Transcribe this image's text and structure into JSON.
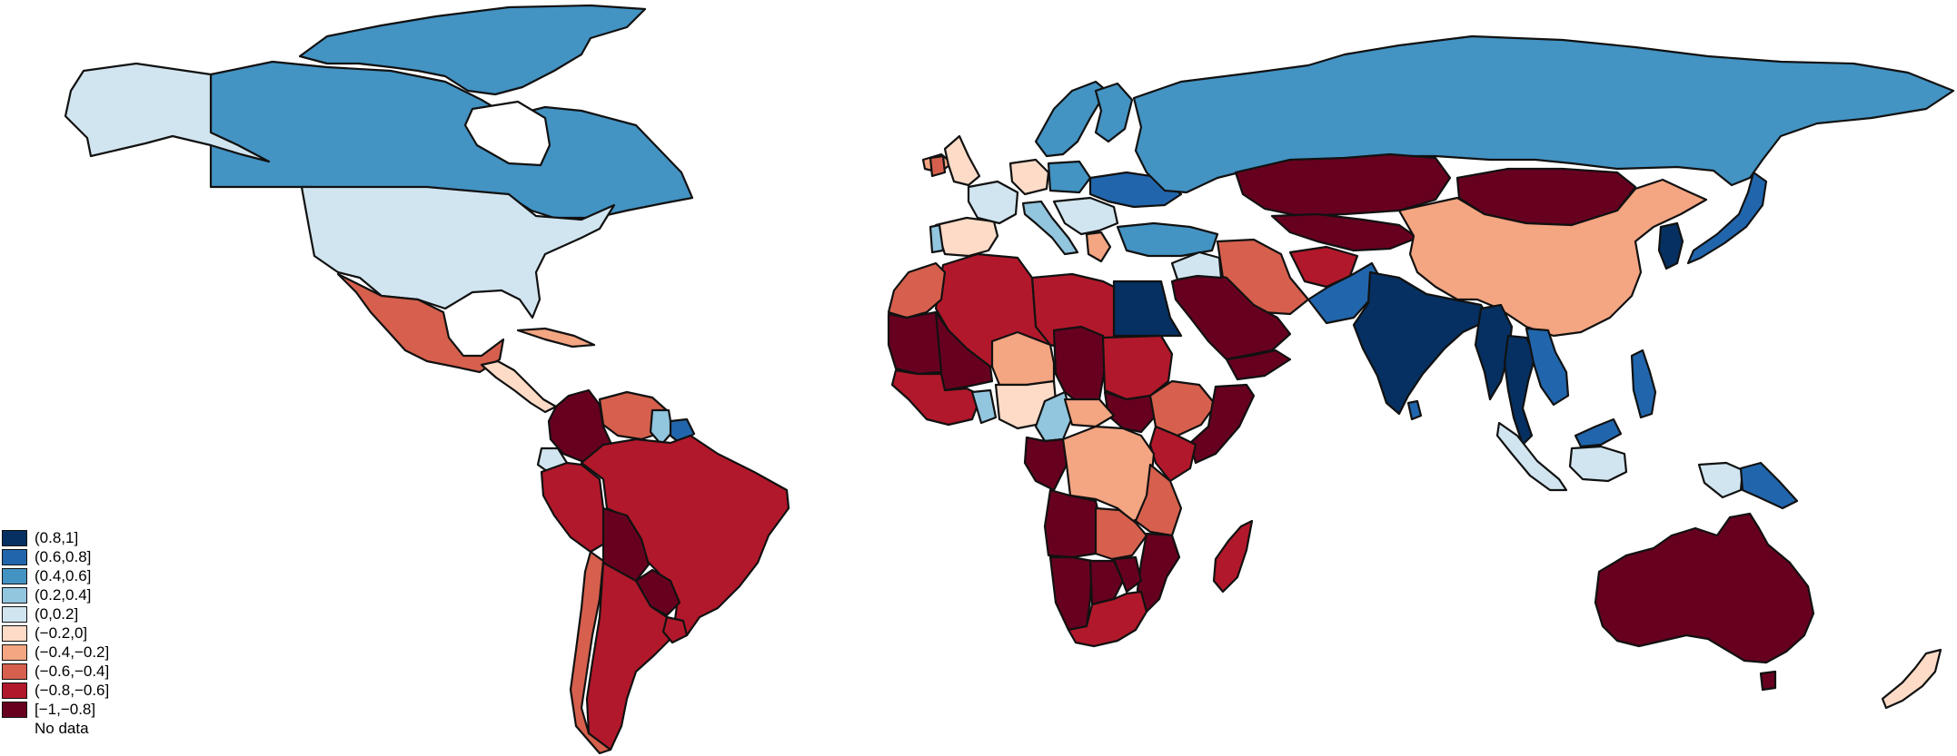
{
  "map": {
    "legend": [
      {
        "label": "(0.8,1]",
        "color": "#053061"
      },
      {
        "label": "(0.6,0.8]",
        "color": "#2166ac"
      },
      {
        "label": "(0.4,0.6]",
        "color": "#4393c3"
      },
      {
        "label": "(0.2,0.4]",
        "color": "#92c5de"
      },
      {
        "label": "(0,0.2]",
        "color": "#d1e5f0"
      },
      {
        "label": "(−0.2,0]",
        "color": "#fddbc7"
      },
      {
        "label": "(−0.4,−0.2]",
        "color": "#f4a582"
      },
      {
        "label": "(−0.6,−0.4]",
        "color": "#d6604d"
      },
      {
        "label": "(−0.8,−0.6]",
        "color": "#b2182b"
      },
      {
        "label": "[−1,−0.8]",
        "color": "#67001f"
      },
      {
        "label": "No data",
        "color": "#ffffff"
      }
    ],
    "regions": [
      {
        "name": "greenland",
        "class": 2
      },
      {
        "name": "canada",
        "class": 2
      },
      {
        "name": "alaska",
        "class": 4
      },
      {
        "name": "usa",
        "class": 4
      },
      {
        "name": "mexico",
        "class": 7
      },
      {
        "name": "central-america",
        "class": 5
      },
      {
        "name": "cuba",
        "class": 6
      },
      {
        "name": "colombia",
        "class": 9
      },
      {
        "name": "venezuela",
        "class": 7
      },
      {
        "name": "guyana",
        "class": 3
      },
      {
        "name": "suriname",
        "class": 1
      },
      {
        "name": "ecuador",
        "class": 4
      },
      {
        "name": "peru",
        "class": 8
      },
      {
        "name": "brazil",
        "class": 8
      },
      {
        "name": "bolivia",
        "class": 9
      },
      {
        "name": "paraguay",
        "class": 9
      },
      {
        "name": "chile",
        "class": 7
      },
      {
        "name": "argentina",
        "class": 8
      },
      {
        "name": "uruguay",
        "class": 8
      },
      {
        "name": "iceland",
        "class": 6
      },
      {
        "name": "uk",
        "class": 5
      },
      {
        "name": "ireland",
        "class": 7
      },
      {
        "name": "norway-sweden",
        "class": 2
      },
      {
        "name": "finland",
        "class": 2
      },
      {
        "name": "iberia",
        "class": 5
      },
      {
        "name": "portugal",
        "class": 3
      },
      {
        "name": "france",
        "class": 4
      },
      {
        "name": "germany",
        "class": 5
      },
      {
        "name": "poland",
        "class": 2
      },
      {
        "name": "ukraine",
        "class": 1
      },
      {
        "name": "italy",
        "class": 3
      },
      {
        "name": "balkans",
        "class": 4
      },
      {
        "name": "greece",
        "class": 6
      },
      {
        "name": "turkey",
        "class": 2
      },
      {
        "name": "russia",
        "class": 2
      },
      {
        "name": "kazakhstan",
        "class": 9
      },
      {
        "name": "mongolia",
        "class": 9
      },
      {
        "name": "central-asia",
        "class": 9
      },
      {
        "name": "china",
        "class": 6
      },
      {
        "name": "korea",
        "class": 0
      },
      {
        "name": "japan",
        "class": 1
      },
      {
        "name": "iran",
        "class": 7
      },
      {
        "name": "afghanistan",
        "class": 8
      },
      {
        "name": "pakistan",
        "class": 1
      },
      {
        "name": "india",
        "class": 0
      },
      {
        "name": "sri-lanka",
        "class": 1
      },
      {
        "name": "myanmar",
        "class": 0
      },
      {
        "name": "thailand",
        "class": 0
      },
      {
        "name": "vietnam",
        "class": 1
      },
      {
        "name": "philippines",
        "class": 1
      },
      {
        "name": "malaysia",
        "class": 1
      },
      {
        "name": "sumatra",
        "class": 4
      },
      {
        "name": "borneo",
        "class": 4
      },
      {
        "name": "new-guinea-west",
        "class": 4
      },
      {
        "name": "papua-new-guinea",
        "class": 1
      },
      {
        "name": "saudi-arabia",
        "class": 9
      },
      {
        "name": "yemen",
        "class": 9
      },
      {
        "name": "iraq-syria",
        "class": 4
      },
      {
        "name": "egypt",
        "class": 0
      },
      {
        "name": "libya",
        "class": 8
      },
      {
        "name": "algeria",
        "class": 8
      },
      {
        "name": "morocco",
        "class": 7
      },
      {
        "name": "mauritania",
        "class": 9
      },
      {
        "name": "mali",
        "class": 9
      },
      {
        "name": "niger",
        "class": 6
      },
      {
        "name": "chad",
        "class": 9
      },
      {
        "name": "sudan",
        "class": 8
      },
      {
        "name": "south-sudan",
        "class": 9
      },
      {
        "name": "ethiopia",
        "class": 7
      },
      {
        "name": "somalia",
        "class": 9
      },
      {
        "name": "kenya",
        "class": 8
      },
      {
        "name": "west-africa-coast",
        "class": 8
      },
      {
        "name": "ghana-togo",
        "class": 3
      },
      {
        "name": "nigeria",
        "class": 5
      },
      {
        "name": "cameroon",
        "class": 3
      },
      {
        "name": "car",
        "class": 6
      },
      {
        "name": "gabon-congo",
        "class": 9
      },
      {
        "name": "drc",
        "class": 6
      },
      {
        "name": "tanzania",
        "class": 7
      },
      {
        "name": "angola",
        "class": 9
      },
      {
        "name": "zambia",
        "class": 7
      },
      {
        "name": "mozambique",
        "class": 9
      },
      {
        "name": "namibia",
        "class": 9
      },
      {
        "name": "botswana",
        "class": 9
      },
      {
        "name": "zimbabwe",
        "class": 9
      },
      {
        "name": "south-africa",
        "class": 8
      },
      {
        "name": "madagascar",
        "class": 8
      },
      {
        "name": "australia",
        "class": 9
      },
      {
        "name": "tasmania",
        "class": 9
      },
      {
        "name": "new-zealand",
        "class": 5
      }
    ]
  }
}
